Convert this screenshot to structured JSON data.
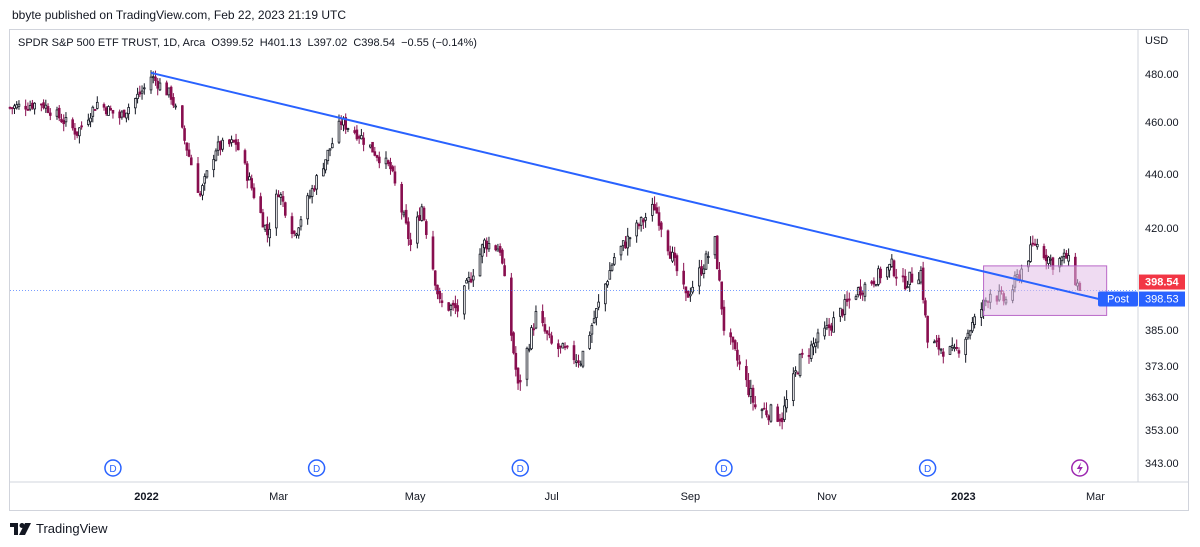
{
  "header": {
    "publisher": "bbyte published on TradingView.com, Feb 22, 2023 21:19 UTC"
  },
  "symbol": {
    "name": "SPDR S&P 500 ETF TRUST, 1D, Arca",
    "open": "O399.52",
    "high": "H401.13",
    "low": "L397.02",
    "close": "C398.54",
    "change": "−0.55 (−0.14%)"
  },
  "brand": {
    "text": "TradingView",
    "icon": "tradingview-logo-icon"
  },
  "colors": {
    "up": "#131722",
    "down": "#880e4f",
    "trendline": "#2962ff",
    "box_fill": "#e1bee7",
    "box_stroke": "#ba68c8",
    "price_label": "#f23645",
    "post_label": "#2962ff",
    "dividend": "#2962ff",
    "event": "#9c27b0"
  },
  "chart_data": {
    "type": "candlestick",
    "currency": "USD",
    "y_ticks": [
      "480.00",
      "460.00",
      "440.00",
      "420.00",
      "385.00",
      "373.00",
      "363.00",
      "353.00",
      "343.00"
    ],
    "y_tick_values": [
      480,
      460,
      440,
      420,
      385,
      373,
      363,
      353,
      343
    ],
    "x_ticks": [
      "2022",
      "Mar",
      "May",
      "Jul",
      "Sep",
      "Nov",
      "2023",
      "Mar"
    ],
    "x_tick_dates": [
      "2022-01-01",
      "2022-03-01",
      "2022-05-01",
      "2022-07-01",
      "2022-09-01",
      "2022-11-01",
      "2023-01-01",
      "2023-03-01"
    ],
    "x_range": [
      "2021-11-01",
      "2023-03-20"
    ],
    "last_price_label": "398.54",
    "post_label": "Post",
    "post_price_label": "398.53",
    "last_price": 398.54,
    "dividend_markers": {
      "label": "D",
      "dates": [
        "2021-12-17",
        "2022-03-18",
        "2022-06-17",
        "2022-09-16",
        "2022-12-16"
      ]
    },
    "event_marker": {
      "date": "2023-02-22",
      "icon": "lightning-icon"
    },
    "trendline": {
      "start": {
        "date": "2022-01-03",
        "price": 480.5
      },
      "end": {
        "date": "2023-03-06",
        "price": 395.0
      }
    },
    "box": {
      "start_date": "2023-01-10",
      "end_date": "2023-03-06",
      "top": 407,
      "bottom": 390
    },
    "waypoints": [
      [
        "2021-11-01",
        466
      ],
      [
        "2021-11-15",
        468
      ],
      [
        "2021-12-01",
        456
      ],
      [
        "2021-12-10",
        468
      ],
      [
        "2021-12-20",
        462
      ],
      [
        "2021-12-31",
        474
      ],
      [
        "2022-01-03",
        479
      ],
      [
        "2022-01-12",
        471
      ],
      [
        "2022-01-25",
        432
      ],
      [
        "2022-02-01",
        450
      ],
      [
        "2022-02-10",
        452
      ],
      [
        "2022-02-24",
        418
      ],
      [
        "2022-03-01",
        434
      ],
      [
        "2022-03-08",
        418
      ],
      [
        "2022-03-29",
        460
      ],
      [
        "2022-04-05",
        456
      ],
      [
        "2022-04-20",
        442
      ],
      [
        "2022-04-29",
        414
      ],
      [
        "2022-05-04",
        428
      ],
      [
        "2022-05-12",
        394
      ],
      [
        "2022-05-20",
        392
      ],
      [
        "2022-06-01",
        415
      ],
      [
        "2022-06-08",
        413
      ],
      [
        "2022-06-16",
        366
      ],
      [
        "2022-06-24",
        390
      ],
      [
        "2022-07-01",
        380
      ],
      [
        "2022-07-14",
        375
      ],
      [
        "2022-07-29",
        410
      ],
      [
        "2022-08-16",
        428
      ],
      [
        "2022-08-30",
        396
      ],
      [
        "2022-09-12",
        415
      ],
      [
        "2022-09-16",
        386
      ],
      [
        "2022-09-30",
        360
      ],
      [
        "2022-10-12",
        357
      ],
      [
        "2022-10-20",
        375
      ],
      [
        "2022-11-01",
        385
      ],
      [
        "2022-11-14",
        398
      ],
      [
        "2022-11-30",
        407
      ],
      [
        "2022-12-05",
        401
      ],
      [
        "2022-12-13",
        405
      ],
      [
        "2022-12-16",
        381
      ],
      [
        "2022-12-28",
        377
      ],
      [
        "2023-01-06",
        388
      ],
      [
        "2023-01-13",
        398
      ],
      [
        "2023-01-20",
        395
      ],
      [
        "2023-02-02",
        415
      ],
      [
        "2023-02-10",
        408
      ],
      [
        "2023-02-16",
        410
      ],
      [
        "2023-02-22",
        398.5
      ]
    ]
  }
}
